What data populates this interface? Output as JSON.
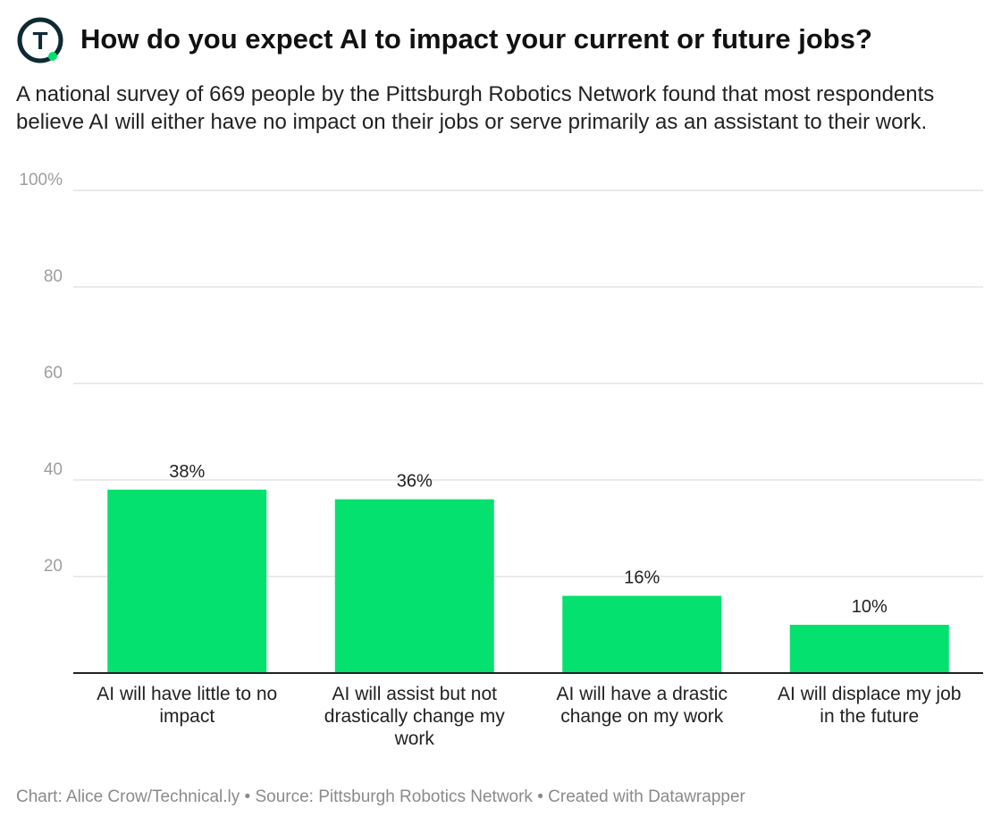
{
  "header": {
    "title": "How do you expect AI to impact your current or future jobs?",
    "subtitle": "A national survey of 669 people by the Pittsburgh Robotics Network found that most respondents believe AI will either have no impact on their jobs or serve primarily as an assistant to their work.",
    "logo_letter": "T"
  },
  "colors": {
    "bar": "#05e16e",
    "logo_ring": "#0e2a33",
    "logo_dot": "#05e16e",
    "grid": "#dedede",
    "axis": "#222222",
    "tick_label": "#9e9e9e"
  },
  "chart_data": {
    "type": "bar",
    "title": "How do you expect AI to impact your current or future jobs?",
    "xlabel": "",
    "ylabel": "",
    "ylim": [
      0,
      100
    ],
    "y_ticks": [
      20,
      40,
      60,
      80,
      100
    ],
    "y_tick_labels": [
      "20",
      "40",
      "60",
      "80",
      "100%"
    ],
    "grid": true,
    "categories": [
      [
        "AI will have little to no",
        "impact"
      ],
      [
        "AI will assist but not",
        "drastically change my",
        "work"
      ],
      [
        "AI will have a drastic",
        "change on my work"
      ],
      [
        "AI will displace my job",
        "in the future"
      ]
    ],
    "values": [
      38,
      36,
      16,
      10
    ],
    "value_labels": [
      "38%",
      "36%",
      "16%",
      "10%"
    ]
  },
  "footer": {
    "credit": "Chart: Alice Crow/Technical.ly • Source: Pittsburgh Robotics Network • Created with Datawrapper"
  }
}
